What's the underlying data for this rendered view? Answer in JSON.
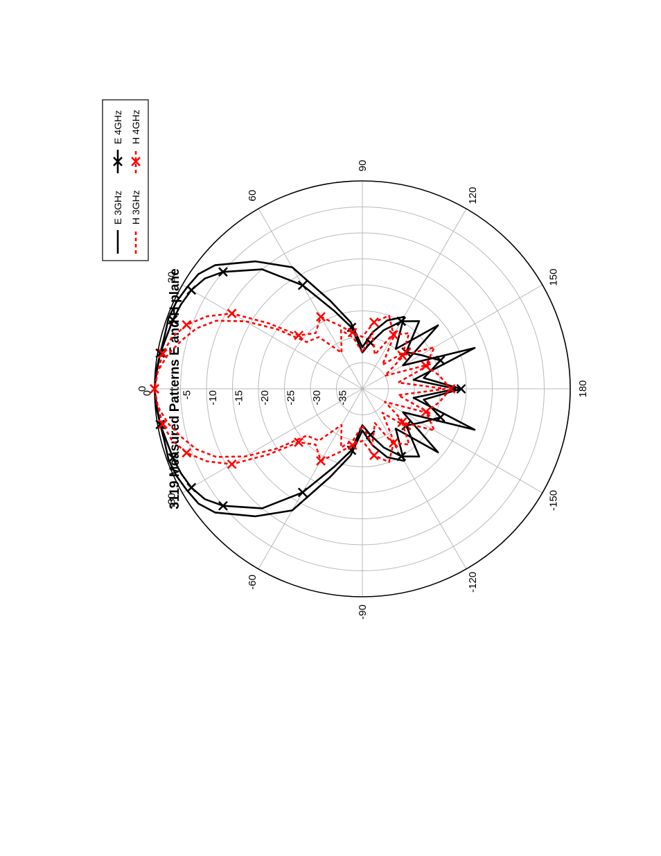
{
  "chart_data": {
    "type": "polar-line",
    "title": "3119 Measured Patterns E and H plane",
    "angular_ticks": [
      "0",
      "30",
      "60",
      "90",
      "120",
      "150",
      "180",
      "-150",
      "-120",
      "-90",
      "-60",
      "-30"
    ],
    "angular_tick_values": [
      0,
      30,
      60,
      90,
      120,
      150,
      180,
      -150,
      -120,
      -90,
      -60,
      -30
    ],
    "radial_ticks": [
      "0",
      "-5",
      "-10",
      "-15",
      "-20",
      "-25",
      "-30",
      "-35"
    ],
    "radial_tick_values": [
      0,
      -5,
      -10,
      -15,
      -20,
      -25,
      -30,
      -35
    ],
    "radial_range": [
      -40,
      0
    ],
    "grid": true,
    "legend_position": "top-right",
    "colors": {
      "E": "#000000",
      "H": "#ff0000"
    },
    "series": [
      {
        "name": "E 3GHz",
        "color": "#000000",
        "dash": "solid",
        "marker": "none",
        "angles": [
          -180,
          -170,
          -160,
          -150,
          -140,
          -130,
          -120,
          -110,
          -100,
          -90,
          -80,
          -70,
          -60,
          -50,
          -40,
          -35,
          -30,
          -25,
          -20,
          -15,
          -10,
          -5,
          0,
          5,
          10,
          15,
          20,
          25,
          30,
          35,
          40,
          50,
          60,
          70,
          80,
          90,
          100,
          110,
          120,
          130,
          140,
          150,
          160,
          170,
          180
        ],
        "values": [
          -22,
          -30,
          -17,
          -31,
          -21,
          -30,
          -24,
          -26,
          -29,
          -32,
          -27,
          -22,
          -13,
          -8,
          -3,
          -1.5,
          -1,
          -0.5,
          -0.3,
          -0.6,
          -0.5,
          -0.2,
          0,
          -0.2,
          -0.5,
          -0.6,
          -0.3,
          -0.5,
          -1,
          -1.5,
          -3,
          -8,
          -13,
          -22,
          -27,
          -32,
          -29,
          -26,
          -24,
          -30,
          -21,
          -31,
          -17,
          -30,
          -22
        ]
      },
      {
        "name": "E 4GHz",
        "color": "#000000",
        "dash": "solid",
        "marker": "x",
        "angles": [
          -180,
          -170,
          -160,
          -150,
          -140,
          -130,
          -120,
          -110,
          -100,
          -90,
          -80,
          -70,
          -60,
          -50,
          -40,
          -35,
          -30,
          -25,
          -20,
          -15,
          -10,
          -5,
          0,
          5,
          10,
          15,
          20,
          25,
          30,
          35,
          40,
          50,
          60,
          70,
          80,
          90,
          100,
          110,
          120,
          130,
          140,
          150,
          160,
          170,
          180
        ],
        "values": [
          -21,
          -28,
          -24,
          -27,
          -29,
          -23,
          -25,
          -28,
          -31,
          -33,
          -28,
          -24,
          -17,
          -10,
          -5,
          -3,
          -2,
          -1.5,
          -1.2,
          -1,
          -0.5,
          -0.3,
          0,
          -0.3,
          -0.5,
          -1,
          -1.2,
          -1.5,
          -2,
          -3,
          -5,
          -10,
          -17,
          -24,
          -28,
          -33,
          -31,
          -28,
          -25,
          -23,
          -29,
          -27,
          -24,
          -28,
          -21
        ]
      },
      {
        "name": "H 3GHz",
        "color": "#ff0000",
        "dash": "dashed",
        "marker": "none",
        "angles": [
          -180,
          -170,
          -160,
          -150,
          -140,
          -130,
          -120,
          -110,
          -100,
          -90,
          -80,
          -70,
          -60,
          -50,
          -40,
          -35,
          -30,
          -25,
          -20,
          -15,
          -10,
          -5,
          0,
          5,
          10,
          15,
          20,
          25,
          30,
          35,
          40,
          50,
          60,
          70,
          80,
          90,
          100,
          110,
          120,
          130,
          140,
          150,
          160,
          170,
          180
        ],
        "values": [
          -24,
          -33,
          -26,
          -35,
          -28,
          -34,
          -27,
          -33,
          -29,
          -33,
          -30,
          -28,
          -32,
          -27,
          -26,
          -20,
          -14,
          -9,
          -6,
          -4,
          -2,
          -0.5,
          0,
          -0.5,
          -2,
          -4,
          -6,
          -9,
          -14,
          -20,
          -26,
          -27,
          -32,
          -28,
          -30,
          -33,
          -29,
          -33,
          -27,
          -34,
          -28,
          -35,
          -26,
          -33,
          -24
        ]
      },
      {
        "name": "H 4GHz",
        "color": "#ff0000",
        "dash": "dashed",
        "marker": "x",
        "angles": [
          -180,
          -170,
          -160,
          -150,
          -140,
          -130,
          -120,
          -110,
          -100,
          -90,
          -80,
          -70,
          -60,
          -50,
          -40,
          -35,
          -30,
          -25,
          -20,
          -15,
          -10,
          -5,
          0,
          5,
          10,
          15,
          20,
          25,
          30,
          35,
          40,
          50,
          60,
          70,
          80,
          90,
          100,
          110,
          120,
          130,
          140,
          150,
          160,
          170,
          180
        ],
        "values": [
          -23,
          -25,
          -27,
          -24,
          -30,
          -26,
          -28,
          -25,
          -27,
          -30,
          -29,
          -27,
          -24,
          -26,
          -24,
          -18,
          -11,
          -7,
          -4,
          -2,
          -1,
          -0.5,
          0,
          -0.5,
          -1,
          -2,
          -4,
          -7,
          -11,
          -18,
          -24,
          -26,
          -24,
          -27,
          -29,
          -30,
          -27,
          -25,
          -28,
          -26,
          -30,
          -24,
          -27,
          -25,
          -23
        ]
      }
    ]
  },
  "legend": {
    "entries": [
      {
        "label": "E 3GHz",
        "color": "#000000",
        "dash": "solid",
        "marker": "none"
      },
      {
        "label": "E 4GHz",
        "color": "#000000",
        "dash": "solid",
        "marker": "x"
      },
      {
        "label": "H 3GHz",
        "color": "#ff0000",
        "dash": "dashed",
        "marker": "none"
      },
      {
        "label": "H 4GHz",
        "color": "#ff0000",
        "dash": "dashed",
        "marker": "x"
      }
    ]
  }
}
